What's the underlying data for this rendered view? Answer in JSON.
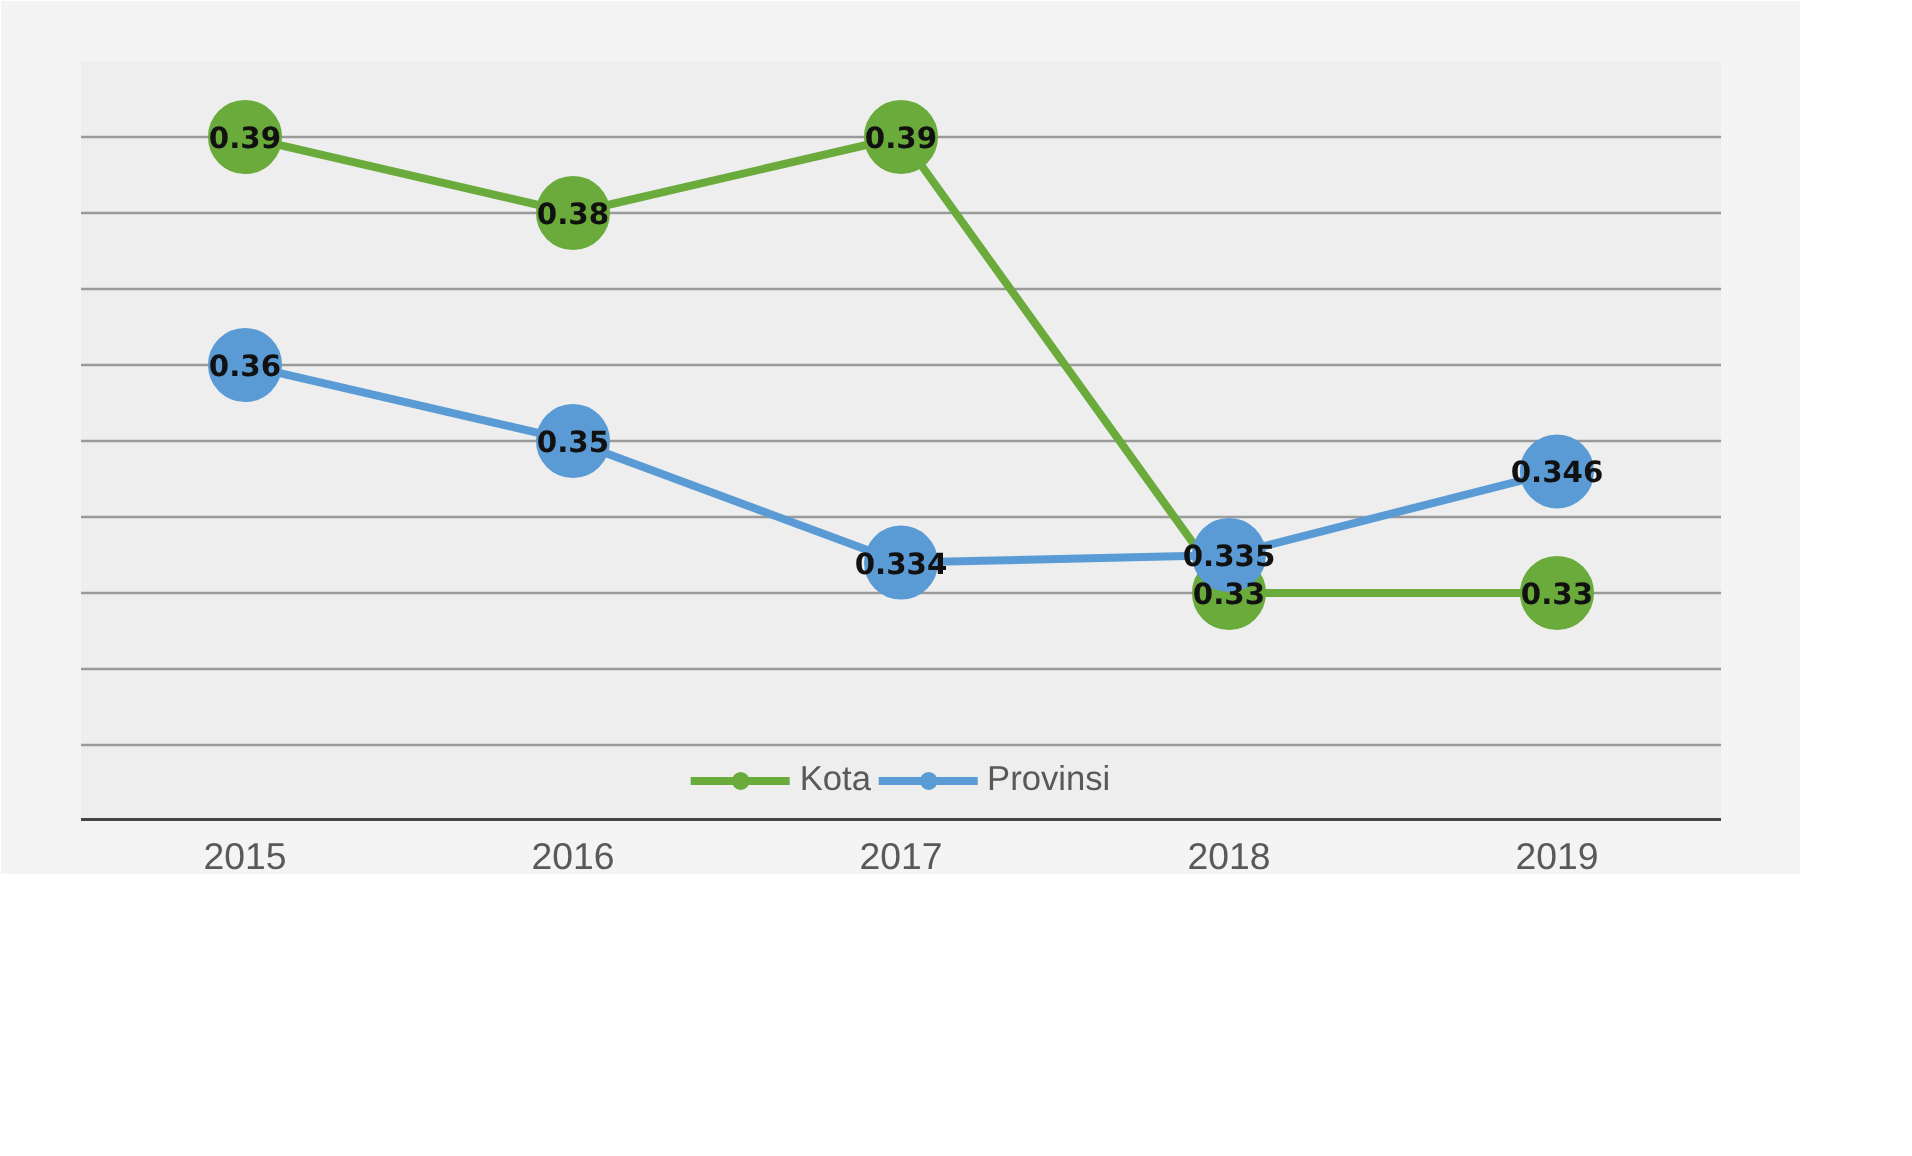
{
  "chart_data": {
    "type": "line",
    "categories": [
      "2015",
      "2016",
      "2017",
      "2018",
      "2019"
    ],
    "series": [
      {
        "name": "Kota",
        "color": "#6aab3c",
        "values": [
          0.39,
          0.38,
          0.39,
          0.33,
          0.33
        ]
      },
      {
        "name": "Provinsi",
        "color": "#5b9bd5",
        "values": [
          0.36,
          0.35,
          0.334,
          0.335,
          0.346
        ]
      }
    ],
    "ylim": [
      0.3,
      0.4
    ],
    "yticks": [
      {
        "value": 0.3,
        "label": null
      },
      {
        "value": 0.31,
        "label": null
      },
      {
        "value": 0.32,
        "label": null
      },
      {
        "value": 0.33,
        "label": null
      },
      {
        "value": 0.34,
        "label": null
      },
      {
        "value": 0.35,
        "label": null
      },
      {
        "value": 0.36,
        "label": null
      },
      {
        "value": 0.37,
        "label": null
      },
      {
        "value": 0.38,
        "label": null
      },
      {
        "value": 0.39,
        "label": null
      }
    ],
    "tick_labels": "x",
    "grid": "y",
    "legend": "bottom",
    "marker": "circle",
    "line_style": "solid",
    "data_labels": true
  }
}
